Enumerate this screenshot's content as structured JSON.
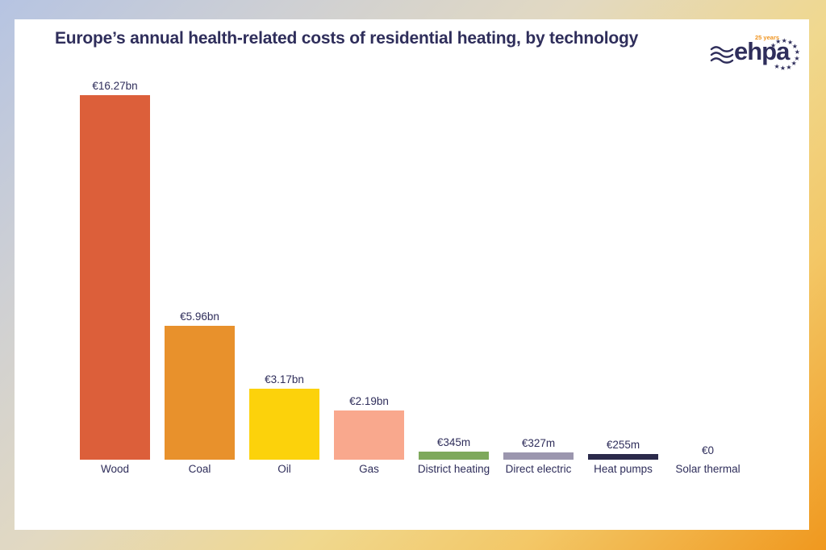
{
  "header": {
    "logo": {
      "brand": "ehpa",
      "anniversary": "25 years"
    }
  },
  "chart_data": {
    "type": "bar",
    "title": "Europe’s annual health-related costs of residential heating, by technology",
    "categories": [
      "Wood",
      "Coal",
      "Oil",
      "Gas",
      "District heating",
      "Direct electric",
      "Heat pumps",
      "Solar thermal"
    ],
    "values_eur_bn": [
      16.27,
      5.96,
      3.17,
      2.19,
      0.345,
      0.327,
      0.255,
      0
    ],
    "value_labels": [
      "€16.27bn",
      "€5.96bn",
      "€3.17bn",
      "€2.19bn",
      "€345m",
      "€327m",
      "€255m",
      "€0"
    ],
    "bar_colors": [
      "#dc5f3a",
      "#e8912c",
      "#fcd20b",
      "#f9a88d",
      "#7ea95c",
      "#9b96ae",
      "#2b2a4b",
      "transparent"
    ],
    "xlabel": "",
    "ylabel": "",
    "ylim": [
      0,
      16.27
    ],
    "grid": false,
    "legend": "none",
    "value_label_position": "above-bar"
  },
  "colors": {
    "text": "#2f2e5b",
    "accent_orange": "#f0941f",
    "card_background": "#ffffff",
    "frame_gradient": [
      "#b6c4e2",
      "#e2d9c2",
      "#f0d88e",
      "#f0981e"
    ]
  }
}
